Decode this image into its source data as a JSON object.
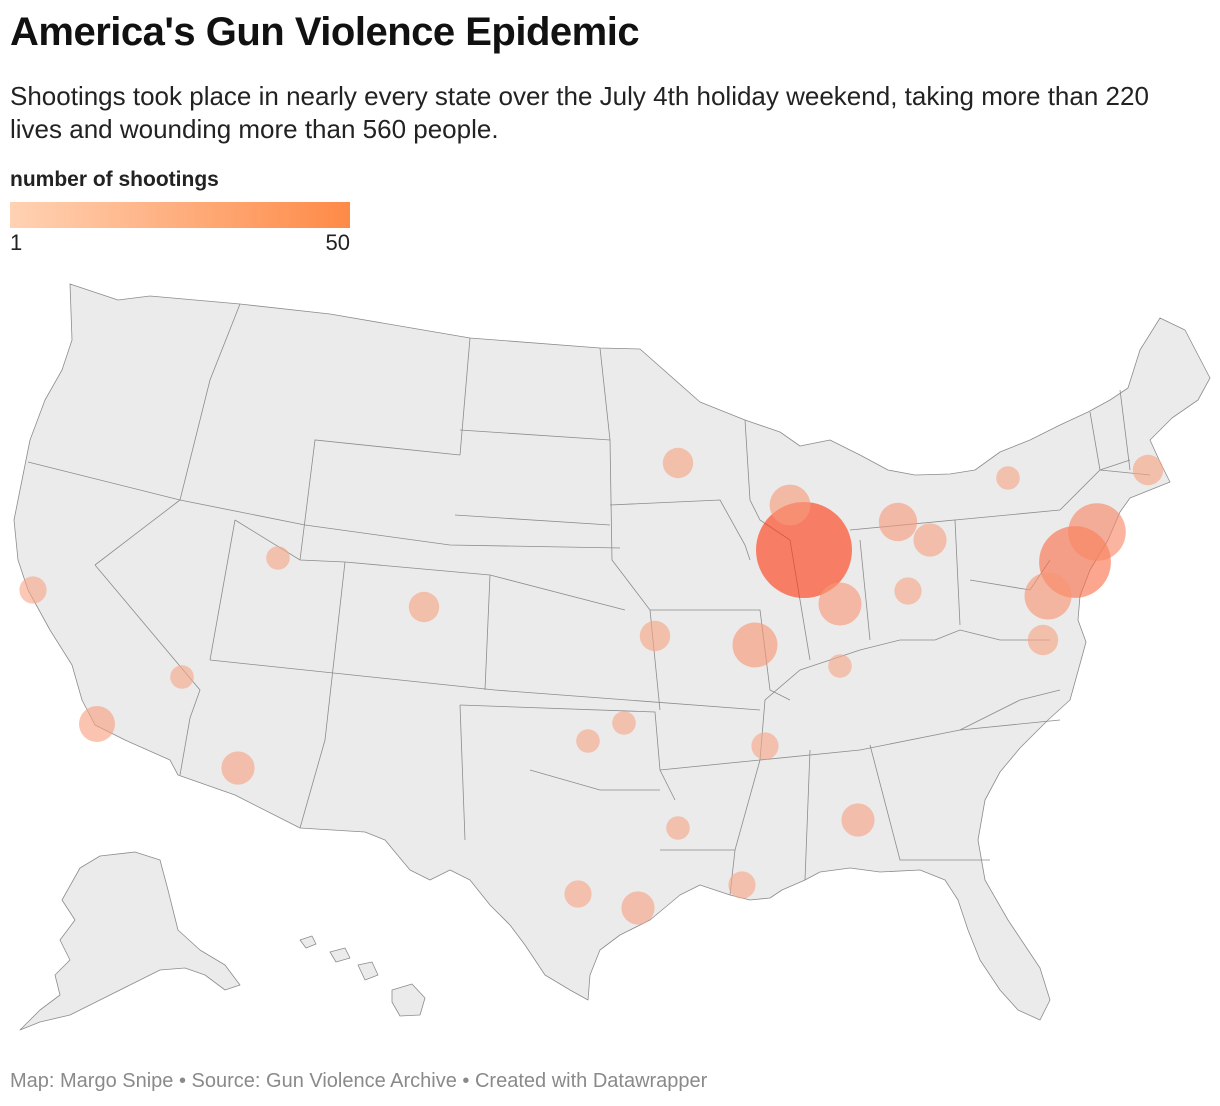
{
  "header": {
    "title": "America's Gun Violence Epidemic",
    "subtitle": "Shootings took place in nearly every state over the July 4th holiday weekend, taking more than 220 lives and wounding more than 560 people."
  },
  "legend": {
    "title": "number of shootings",
    "min_label": "1",
    "max_label": "50",
    "color_low": "#ffd2b4",
    "color_high": "#fe8a47"
  },
  "colors": {
    "land": "#ebebeb",
    "borders": "#8c8c8c",
    "bubble_low": "#f6ad8e",
    "bubble_high": "#ff3c14"
  },
  "footer": {
    "text": "Map: Margo Snipe • Source: Gun Violence Archive • Created with Datawrapper"
  },
  "shootings": [
    {
      "location": "Chicago, IL",
      "count": 50
    },
    {
      "location": "Philadelphia, PA",
      "count": 28
    },
    {
      "location": "New York, NY",
      "count": 18
    },
    {
      "location": "Baltimore, MD",
      "count": 12
    },
    {
      "location": "St. Louis, MO",
      "count": 11
    },
    {
      "location": "Indianapolis, IN",
      "count": 10
    },
    {
      "location": "Milwaukee, WI",
      "count": 9
    },
    {
      "location": "Detroit, MI",
      "count": 8
    },
    {
      "location": "Los Angeles, CA",
      "count": 7
    },
    {
      "location": "Houston, TX",
      "count": 6
    },
    {
      "location": "Atlanta, GA",
      "count": 6
    },
    {
      "location": "Phoenix, AZ",
      "count": 6
    },
    {
      "location": "Cleveland, OH",
      "count": 6
    },
    {
      "location": "Minneapolis, MN",
      "count": 5
    },
    {
      "location": "Boston, MA",
      "count": 5
    },
    {
      "location": "Washington, DC",
      "count": 5
    },
    {
      "location": "Kansas City, MO",
      "count": 5
    },
    {
      "location": "Denver, CO",
      "count": 5
    },
    {
      "location": "Memphis, TN",
      "count": 4
    },
    {
      "location": "San Antonio, TX",
      "count": 4
    },
    {
      "location": "New Orleans, LA",
      "count": 4
    },
    {
      "location": "Oakland, CA",
      "count": 4
    },
    {
      "location": "Columbus, OH",
      "count": 4
    },
    {
      "location": "Oklahoma City, OK",
      "count": 3
    },
    {
      "location": "Dallas, TX",
      "count": 3
    },
    {
      "location": "Las Vegas, NV",
      "count": 3
    },
    {
      "location": "Salt Lake City, UT",
      "count": 3
    },
    {
      "location": "Buffalo, NY",
      "count": 3
    },
    {
      "location": "Louisville, KY",
      "count": 3
    },
    {
      "location": "Tulsa, OK",
      "count": 3
    }
  ]
}
